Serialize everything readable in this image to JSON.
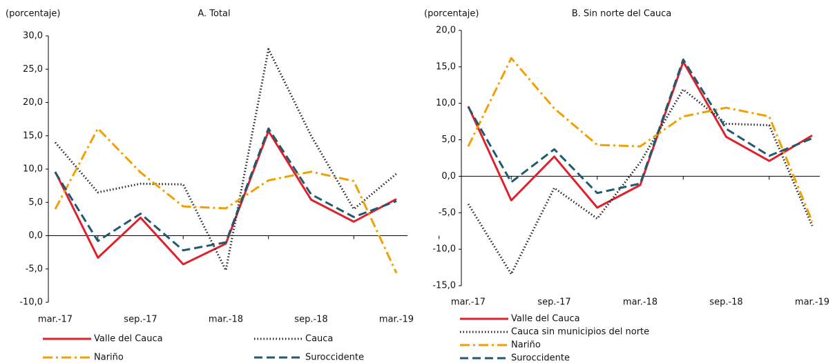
{
  "chart_data": [
    {
      "type": "line",
      "title": "A. Total",
      "y_label": "(porcentaje)",
      "categories": [
        "mar.-17",
        null,
        "sep.-17",
        null,
        "mar.-18",
        null,
        "sep.-18",
        null,
        "mar.-19"
      ],
      "series": [
        {
          "name": "Valle del Cauca",
          "color": "#e0202a",
          "dash": "solid",
          "values": [
            9.6,
            -3.3,
            2.7,
            -4.3,
            -1.2,
            15.7,
            5.4,
            2.1,
            5.5
          ]
        },
        {
          "name": "Cauca",
          "color": "#222222",
          "dash": "dotted",
          "values": [
            14.0,
            6.5,
            7.8,
            7.7,
            -5.2,
            28.0,
            15.0,
            4.0,
            9.3
          ]
        },
        {
          "name": "Nariño",
          "color": "#f0a000",
          "dash": "dashdot",
          "values": [
            4.0,
            16.1,
            9.5,
            4.4,
            4.1,
            8.3,
            9.6,
            8.2,
            -5.6
          ]
        },
        {
          "name": "Suroccidente",
          "color": "#1f5a6e",
          "dash": "dashed",
          "values": [
            9.5,
            -0.8,
            3.3,
            -2.2,
            -1.0,
            16.1,
            6.2,
            2.8,
            5.2
          ]
        }
      ],
      "ylim": [
        -10,
        30
      ],
      "yticks": [
        {
          "value": -10,
          "label": "-10,0"
        },
        {
          "value": -5,
          "label": "-5,0"
        },
        {
          "value": 0,
          "label": "0,0"
        },
        {
          "value": 5,
          "label": "5,0"
        },
        {
          "value": 10,
          "label": "10,0"
        },
        {
          "value": 15,
          "label": "15,0"
        },
        {
          "value": 20,
          "label": "20,0"
        },
        {
          "value": 25,
          "label": "25,0"
        },
        {
          "value": 30,
          "label": "30,0"
        }
      ],
      "grid": false,
      "legend": "bottom"
    },
    {
      "type": "line",
      "title": "B. Sin norte del Cauca",
      "y_label": "(porcentaje)",
      "categories": [
        "mar.-17",
        null,
        "sep.-17",
        null,
        "mar.-18",
        null,
        "sep.-18",
        null,
        "mar.-19"
      ],
      "series": [
        {
          "name": "Valle del Cauca",
          "color": "#e0202a",
          "dash": "solid",
          "values": [
            9.6,
            -3.3,
            2.7,
            -4.3,
            -1.2,
            15.7,
            5.4,
            2.1,
            5.6
          ]
        },
        {
          "name": "Cauca sin municipios del norte",
          "color": "#222222",
          "dash": "dotted",
          "values": [
            -3.8,
            -13.4,
            -1.6,
            -5.8,
            1.9,
            11.9,
            7.2,
            7.0,
            -6.8
          ]
        },
        {
          "name": "Nariño",
          "color": "#f0a000",
          "dash": "dashdot",
          "values": [
            4.1,
            16.2,
            9.3,
            4.3,
            4.1,
            8.2,
            9.4,
            8.2,
            -6.2
          ]
        },
        {
          "name": "Suroccidente",
          "color": "#1f5a6e",
          "dash": "dashed",
          "values": [
            9.5,
            -0.8,
            3.7,
            -2.3,
            -1.0,
            16.0,
            6.5,
            2.8,
            5.2
          ]
        }
      ],
      "ylim": [
        -15,
        20
      ],
      "yticks": [
        {
          "value": -15,
          "label": "-15,0"
        },
        {
          "value": -10,
          "label": "-10,0"
        },
        {
          "value": -5,
          "label": "-5,0"
        },
        {
          "value": 0,
          "label": "0,0"
        },
        {
          "value": 5,
          "label": "5,0"
        },
        {
          "value": 10,
          "label": "10,0"
        },
        {
          "value": 15,
          "label": "15,0"
        },
        {
          "value": 20,
          "label": "20,0"
        }
      ],
      "grid": false,
      "legend": "bottom"
    }
  ]
}
